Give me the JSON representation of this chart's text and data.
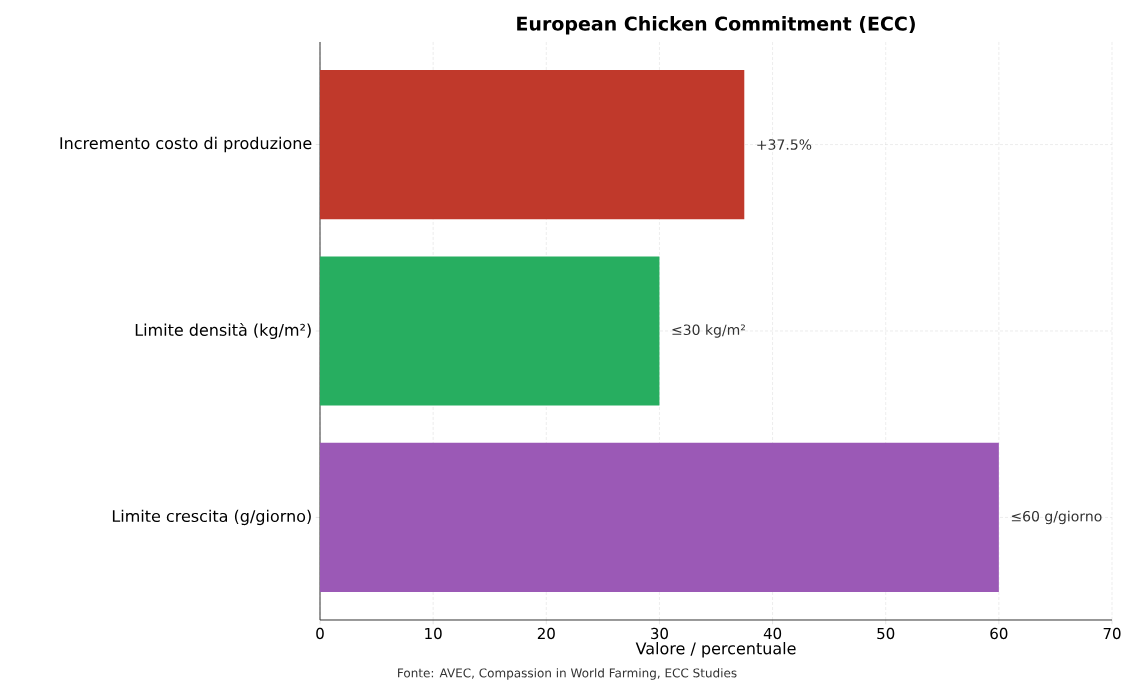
{
  "chart_data": {
    "type": "bar",
    "orientation": "horizontal",
    "title": "European Chicken Commitment (ECC)",
    "xlabel": "Valore / percentuale",
    "categories": [
      "Incremento costo di produzione",
      "Limite densità (kg/m²)",
      "Limite crescita (g/giorno)"
    ],
    "values": [
      37.5,
      30,
      60
    ],
    "colors": [
      "#c0392b",
      "#27ae60",
      "#9b59b6"
    ],
    "value_labels": [
      "+37.5%",
      "≤30 kg/m²",
      "≤60 g/giorno"
    ],
    "xlim": [
      0,
      70
    ],
    "xticks": [
      0,
      10,
      20,
      30,
      40,
      50,
      60,
      70
    ],
    "grid": true,
    "annotations": [
      "Fonte: AVEC, Compassion in World Farming, ECC Studies"
    ]
  }
}
